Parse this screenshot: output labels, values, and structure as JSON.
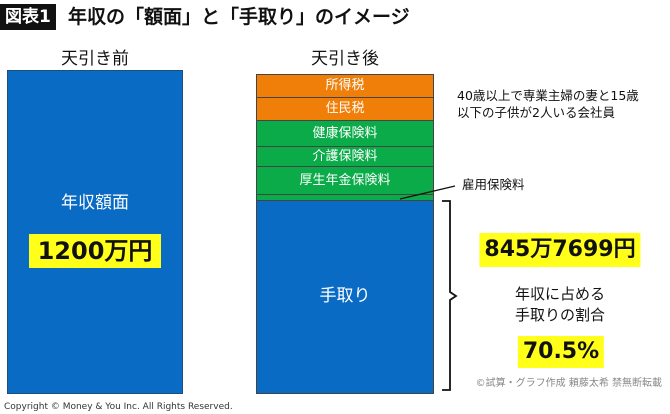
{
  "header": {
    "badge": "図表1",
    "title": "年収の「額面」と「手取り」のイメージ"
  },
  "left": {
    "heading": "天引き前",
    "label": "年収額面",
    "amount": "1200万円"
  },
  "right": {
    "heading": "天引き後",
    "segments": [
      {
        "label": "所得税",
        "color": "#f07f09"
      },
      {
        "label": "住民税",
        "color": "#f07f09"
      },
      {
        "label": "健康保険料",
        "color": "#0aab48"
      },
      {
        "label": "介護保険料",
        "color": "#0aab48"
      },
      {
        "label": "厚生年金保険料",
        "color": "#0aab48"
      }
    ],
    "small_segment": "雇用保険料",
    "take_home_label": "手取り",
    "take_home_color": "#0a6bc4"
  },
  "note": {
    "line1": "40歳以上で専業主婦の妻と15歳",
    "line2": "以下の子供が2人いる会社員"
  },
  "result": {
    "amount": "845万7699円",
    "ratio_label_1": "年収に占める",
    "ratio_label_2": "手取りの割合",
    "ratio": "70.5%"
  },
  "credit": "©試算・グラフ作成 頼藤太希 禁無断転載",
  "copyright": "Copyright © Money & You Inc. All Rights Reserved."
}
